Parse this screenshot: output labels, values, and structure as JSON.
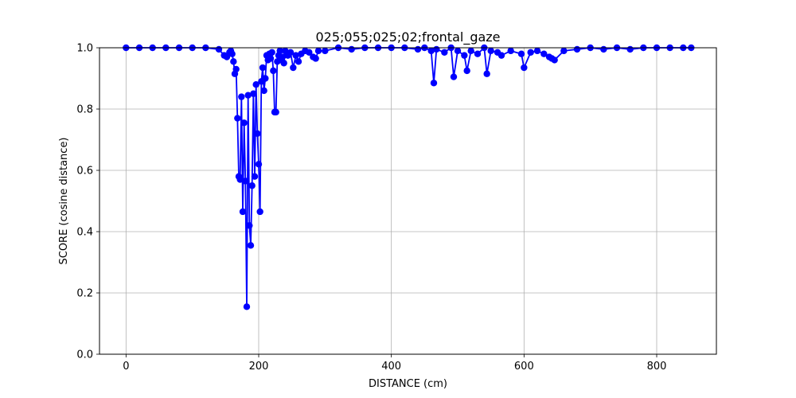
{
  "chart_data": {
    "type": "line",
    "title": "025;055;025;02;frontal_gaze",
    "xlabel": "DISTANCE (cm)",
    "ylabel": "SCORE (cosine distance)",
    "xlim": [
      -40,
      890
    ],
    "ylim": [
      0.0,
      1.0
    ],
    "xticks": [
      0,
      200,
      400,
      600,
      800
    ],
    "xtick_labels": [
      "0",
      "200",
      "400",
      "600",
      "800"
    ],
    "yticks": [
      0.0,
      0.2,
      0.4,
      0.6,
      0.8,
      1.0
    ],
    "ytick_labels": [
      "0.0",
      "0.2",
      "0.4",
      "0.6",
      "0.8",
      "1.0"
    ],
    "grid": true,
    "series": [
      {
        "color": "#0000ff",
        "marker": "circle",
        "x": [
          0,
          20,
          40,
          60,
          80,
          100,
          120,
          140,
          148,
          152,
          156,
          158,
          160,
          162,
          164,
          166,
          168,
          170,
          172,
          174,
          176,
          178,
          180,
          182,
          184,
          186,
          188,
          190,
          192,
          194,
          196,
          198,
          200,
          202,
          204,
          206,
          208,
          210,
          212,
          214,
          216,
          218,
          220,
          222,
          224,
          226,
          228,
          230,
          232,
          234,
          236,
          238,
          240,
          244,
          248,
          252,
          256,
          260,
          264,
          270,
          276,
          282,
          286,
          290,
          300,
          320,
          340,
          360,
          380,
          400,
          420,
          440,
          450,
          460,
          464,
          468,
          480,
          490,
          494,
          500,
          510,
          514,
          520,
          530,
          540,
          544,
          550,
          560,
          566,
          580,
          596,
          600,
          610,
          620,
          630,
          638,
          642,
          646,
          660,
          680,
          700,
          720,
          740,
          760,
          780,
          800,
          820,
          840,
          852
        ],
        "y": [
          1.0,
          1.0,
          1.0,
          1.0,
          1.0,
          1.0,
          1.0,
          0.995,
          0.975,
          0.97,
          0.985,
          0.99,
          0.98,
          0.955,
          0.915,
          0.93,
          0.77,
          0.58,
          0.57,
          0.84,
          0.465,
          0.755,
          0.565,
          0.155,
          0.845,
          0.42,
          0.355,
          0.55,
          0.85,
          0.58,
          0.88,
          0.72,
          0.62,
          0.465,
          0.89,
          0.935,
          0.86,
          0.9,
          0.975,
          0.96,
          0.98,
          0.965,
          0.985,
          0.925,
          0.79,
          0.79,
          0.955,
          0.975,
          0.99,
          0.96,
          0.97,
          0.95,
          0.99,
          0.975,
          0.985,
          0.935,
          0.975,
          0.955,
          0.98,
          0.99,
          0.985,
          0.97,
          0.965,
          0.99,
          0.99,
          1.0,
          0.995,
          1.0,
          1.0,
          1.0,
          1.0,
          0.995,
          1.0,
          0.99,
          0.885,
          0.995,
          0.985,
          1.0,
          0.905,
          0.99,
          0.975,
          0.925,
          0.99,
          0.98,
          1.0,
          0.915,
          0.99,
          0.985,
          0.975,
          0.99,
          0.98,
          0.935,
          0.985,
          0.99,
          0.98,
          0.97,
          0.965,
          0.96,
          0.99,
          0.995,
          1.0,
          0.995,
          1.0,
          0.995,
          1.0,
          1.0,
          1.0,
          1.0,
          1.0
        ]
      }
    ]
  }
}
